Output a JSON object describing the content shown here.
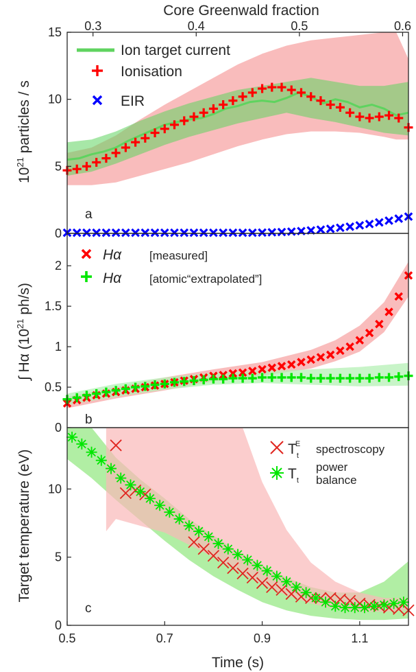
{
  "figure": {
    "top_axis_title": "Core Greenwald fraction",
    "top_ticks": [
      "0.3",
      "0.4",
      "0.5",
      "0.6"
    ],
    "x_axis_title": "Time (s)",
    "x_ticks": [
      "0.5",
      "0.7",
      "0.9",
      "1.1"
    ]
  },
  "chart_data": [
    {
      "type": "line",
      "panel": "a",
      "ylabel": "10²¹ particles / s",
      "ylabel_base": "10",
      "ylabel_exp": "21",
      "ylabel_rest": " particles / s",
      "xlim": [
        0.5,
        1.2
      ],
      "ylim": [
        0,
        15
      ],
      "yticks": [
        "0",
        "5",
        "10",
        "15"
      ],
      "legend": {
        "ion": "Ion target current",
        "ionisation": "Ionisation",
        "eir": "EIR"
      },
      "colors": {
        "ion": "#5fd35f",
        "ionisation": "#ff0000",
        "eir": "#0000ff",
        "band": "#f9b8b8"
      },
      "series": [
        {
          "name": "Ion target current",
          "x": [
            0.5,
            0.525,
            0.55,
            0.575,
            0.6,
            0.625,
            0.65,
            0.675,
            0.7,
            0.725,
            0.75,
            0.775,
            0.8,
            0.825,
            0.85,
            0.875,
            0.9,
            0.925,
            0.95,
            0.975,
            1.0,
            1.025,
            1.05,
            1.075,
            1.1,
            1.125,
            1.15,
            1.175,
            1.2
          ],
          "values": [
            5.5,
            5.6,
            5.9,
            6.1,
            6.4,
            6.9,
            7.3,
            7.7,
            8.1,
            8.3,
            8.5,
            8.6,
            8.9,
            9.3,
            9.5,
            9.8,
            9.9,
            9.8,
            10.1,
            10.5,
            10.2,
            9.7,
            10.0,
            9.8,
            9.4,
            9.6,
            9.3,
            8.8,
            9.0
          ]
        },
        {
          "name": "Ionisation",
          "x": [
            0.5,
            0.52,
            0.54,
            0.56,
            0.58,
            0.6,
            0.62,
            0.64,
            0.66,
            0.68,
            0.7,
            0.72,
            0.74,
            0.76,
            0.78,
            0.8,
            0.82,
            0.84,
            0.86,
            0.88,
            0.9,
            0.92,
            0.94,
            0.96,
            0.98,
            1.0,
            1.02,
            1.04,
            1.06,
            1.08,
            1.1,
            1.12,
            1.14,
            1.16,
            1.18,
            1.2
          ],
          "values": [
            4.7,
            4.8,
            5.0,
            5.3,
            5.6,
            6.0,
            6.4,
            6.8,
            7.1,
            7.5,
            7.8,
            8.1,
            8.4,
            8.7,
            9.0,
            9.3,
            9.6,
            9.9,
            10.2,
            10.5,
            10.8,
            10.9,
            10.9,
            10.7,
            10.5,
            10.2,
            9.9,
            9.6,
            9.4,
            9.0,
            8.7,
            8.6,
            8.7,
            8.8,
            8.6,
            7.9
          ]
        },
        {
          "name": "EIR",
          "x": [
            0.5,
            0.52,
            0.54,
            0.56,
            0.58,
            0.6,
            0.62,
            0.64,
            0.66,
            0.68,
            0.7,
            0.72,
            0.74,
            0.76,
            0.78,
            0.8,
            0.82,
            0.84,
            0.86,
            0.88,
            0.9,
            0.92,
            0.94,
            0.96,
            0.98,
            1.0,
            1.02,
            1.04,
            1.06,
            1.08,
            1.1,
            1.12,
            1.14,
            1.16,
            1.18,
            1.2
          ],
          "values": [
            0.05,
            0.05,
            0.05,
            0.05,
            0.05,
            0.05,
            0.05,
            0.05,
            0.05,
            0.05,
            0.05,
            0.05,
            0.05,
            0.05,
            0.05,
            0.05,
            0.05,
            0.05,
            0.05,
            0.05,
            0.06,
            0.08,
            0.1,
            0.13,
            0.17,
            0.22,
            0.28,
            0.34,
            0.42,
            0.5,
            0.6,
            0.7,
            0.82,
            0.95,
            1.1,
            1.25
          ]
        }
      ],
      "bands": [
        {
          "x": [
            0.5,
            0.55,
            0.6,
            0.65,
            0.7,
            0.75,
            0.8,
            0.85,
            0.9,
            0.95,
            1.0,
            1.05,
            1.1,
            1.15,
            1.175,
            1.2
          ],
          "lower": [
            3.6,
            3.6,
            3.8,
            4.3,
            4.8,
            5.3,
            5.9,
            6.5,
            7.0,
            7.4,
            7.6,
            7.6,
            7.5,
            7.2,
            7.0,
            7.0
          ],
          "upper": [
            6.0,
            6.4,
            7.3,
            8.5,
            9.6,
            10.6,
            11.6,
            12.6,
            13.4,
            14.0,
            14.4,
            14.6,
            14.8,
            15.0,
            15.0,
            13.0
          ]
        },
        {
          "x": [
            0.5,
            0.55,
            0.6,
            0.65,
            0.7,
            0.75,
            0.8,
            0.85,
            0.9,
            0.95,
            1.0,
            1.05,
            1.1,
            1.15,
            1.2
          ],
          "lower": [
            4.3,
            4.6,
            5.2,
            5.9,
            6.6,
            7.2,
            7.7,
            8.2,
            8.6,
            9.0,
            8.6,
            8.3,
            7.9,
            7.5,
            7.3
          ],
          "upper": [
            6.8,
            7.0,
            7.6,
            8.4,
            9.1,
            9.7,
            10.2,
            10.7,
            11.0,
            11.3,
            11.6,
            11.3,
            11.0,
            11.0,
            11.3
          ]
        }
      ]
    },
    {
      "type": "scatter",
      "panel": "b",
      "ylabel": "∫ Hα (10²¹ ph/s)",
      "ylabel_pre": "∫ Hα (10",
      "ylabel_exp": "21",
      "ylabel_post": " ph/s)",
      "xlim": [
        0.5,
        1.2
      ],
      "ylim": [
        0,
        2.4
      ],
      "yticks": [
        "0",
        "0.5",
        "1",
        "1.5",
        "2"
      ],
      "legend": {
        "measured_symbol": "Hα",
        "measured": "[measured]",
        "extrap_symbol": "Hα",
        "extrap": "[atomic“extrapolated”]"
      },
      "colors": {
        "measured": "#ff0000",
        "extrapolated": "#00e600",
        "band_measured": "#f9b8b8",
        "band_extrapolated": "#b5f0b5"
      },
      "series": [
        {
          "name": "Hα [measured]",
          "x": [
            0.5,
            0.52,
            0.54,
            0.56,
            0.58,
            0.6,
            0.62,
            0.64,
            0.66,
            0.68,
            0.7,
            0.72,
            0.74,
            0.76,
            0.78,
            0.8,
            0.82,
            0.84,
            0.86,
            0.88,
            0.9,
            0.92,
            0.94,
            0.96,
            0.98,
            1.0,
            1.02,
            1.04,
            1.06,
            1.08,
            1.1,
            1.12,
            1.14,
            1.16,
            1.18,
            1.2
          ],
          "values": [
            0.3,
            0.34,
            0.37,
            0.4,
            0.42,
            0.44,
            0.46,
            0.48,
            0.5,
            0.52,
            0.54,
            0.56,
            0.58,
            0.6,
            0.62,
            0.64,
            0.65,
            0.67,
            0.68,
            0.7,
            0.72,
            0.74,
            0.76,
            0.78,
            0.81,
            0.84,
            0.87,
            0.9,
            0.95,
            1.0,
            1.08,
            1.17,
            1.28,
            1.43,
            1.62,
            1.88
          ]
        },
        {
          "name": "Hα [atomic“extrapolated”]",
          "x": [
            0.5,
            0.52,
            0.54,
            0.56,
            0.58,
            0.6,
            0.62,
            0.64,
            0.66,
            0.68,
            0.7,
            0.72,
            0.74,
            0.76,
            0.78,
            0.8,
            0.82,
            0.84,
            0.86,
            0.88,
            0.9,
            0.92,
            0.94,
            0.96,
            0.98,
            1.0,
            1.02,
            1.04,
            1.06,
            1.08,
            1.1,
            1.12,
            1.14,
            1.16,
            1.18,
            1.2
          ],
          "values": [
            0.35,
            0.37,
            0.4,
            0.42,
            0.44,
            0.46,
            0.48,
            0.5,
            0.51,
            0.53,
            0.54,
            0.56,
            0.57,
            0.58,
            0.59,
            0.6,
            0.6,
            0.61,
            0.61,
            0.61,
            0.62,
            0.62,
            0.62,
            0.62,
            0.62,
            0.61,
            0.61,
            0.61,
            0.61,
            0.61,
            0.61,
            0.61,
            0.62,
            0.62,
            0.63,
            0.64
          ]
        }
      ],
      "bands": [
        {
          "x": [
            0.5,
            0.6,
            0.7,
            0.8,
            0.9,
            1.0,
            1.05,
            1.1,
            1.15,
            1.2
          ],
          "lower": [
            0.24,
            0.36,
            0.46,
            0.57,
            0.64,
            0.73,
            0.82,
            0.94,
            1.18,
            1.62
          ],
          "upper": [
            0.38,
            0.5,
            0.62,
            0.72,
            0.81,
            0.96,
            1.08,
            1.26,
            1.55,
            2.05
          ]
        },
        {
          "x": [
            0.5,
            0.6,
            0.7,
            0.8,
            0.9,
            1.0,
            1.1,
            1.2
          ],
          "lower": [
            0.28,
            0.38,
            0.47,
            0.53,
            0.55,
            0.53,
            0.51,
            0.52
          ],
          "upper": [
            0.42,
            0.54,
            0.62,
            0.68,
            0.7,
            0.72,
            0.75,
            0.8
          ]
        }
      ]
    },
    {
      "type": "line",
      "panel": "c",
      "ylabel": "Target temperature (eV)",
      "xlim": [
        0.5,
        1.2
      ],
      "ylim": [
        0,
        14.5
      ],
      "yticks": [
        "0",
        "5",
        "10"
      ],
      "legend": {
        "spec_main": "T",
        "spec_sub": "t",
        "spec_sup": "E",
        "spec_text": "spectroscopy",
        "pb_main": "T",
        "pb_sub": "t",
        "pb_line1": "power",
        "pb_line2": "balance"
      },
      "colors": {
        "spectroscopy": "#e0251f",
        "power_balance": "#00e600",
        "band_spectroscopy": "#f9b8b8",
        "band_power": "#a8ec9a",
        "overlap": "#b5a861"
      },
      "series": [
        {
          "name": "T_t^E spectroscopy",
          "x": [
            0.6,
            0.62,
            0.64,
            0.66,
            0.76,
            0.78,
            0.8,
            0.82,
            0.84,
            0.86,
            0.88,
            0.9,
            0.92,
            0.94,
            0.96,
            0.98,
            1.0,
            1.02,
            1.04,
            1.06,
            1.08,
            1.1,
            1.12,
            1.14,
            1.16,
            1.18,
            1.2
          ],
          "values": [
            13.2,
            9.7,
            9.9,
            9.6,
            6.1,
            5.6,
            5.1,
            4.6,
            4.2,
            3.8,
            3.5,
            3.1,
            2.8,
            2.6,
            2.3,
            2.1,
            2.0,
            2.0,
            2.0,
            1.9,
            1.8,
            1.6,
            1.5,
            1.4,
            1.3,
            1.2,
            1.1
          ]
        },
        {
          "name": "T_t power balance",
          "x": [
            0.51,
            0.53,
            0.55,
            0.57,
            0.59,
            0.61,
            0.63,
            0.65,
            0.67,
            0.69,
            0.71,
            0.73,
            0.75,
            0.77,
            0.79,
            0.81,
            0.83,
            0.85,
            0.87,
            0.89,
            0.91,
            0.93,
            0.95,
            0.97,
            0.99,
            1.01,
            1.03,
            1.05,
            1.07,
            1.09,
            1.11,
            1.13,
            1.15,
            1.17,
            1.19
          ],
          "values": [
            13.8,
            13.3,
            12.7,
            12.1,
            11.5,
            10.8,
            10.3,
            9.8,
            9.3,
            8.8,
            8.3,
            7.8,
            7.3,
            6.9,
            6.5,
            6.0,
            5.6,
            5.2,
            4.8,
            4.4,
            4.0,
            3.6,
            3.2,
            2.8,
            2.4,
            2.0,
            1.7,
            1.4,
            1.3,
            1.3,
            1.3,
            1.4,
            1.5,
            1.6,
            1.7
          ]
        }
      ],
      "bands": [
        {
          "x": [
            0.58,
            0.58,
            0.6,
            0.7,
            0.8,
            0.84,
            0.86,
            0.9,
            0.95,
            1.0,
            1.05,
            1.1,
            1.15,
            1.2
          ],
          "lower": [
            6.9,
            6.9,
            7.8,
            6.8,
            5.0,
            4.2,
            3.8,
            3.0,
            2.2,
            1.6,
            1.2,
            1.0,
            1.0,
            1.1
          ],
          "upper": [
            6.9,
            14.5,
            14.5,
            14.5,
            14.5,
            14.5,
            14.5,
            10.5,
            7.0,
            4.6,
            3.2,
            2.4,
            2.0,
            2.0
          ]
        },
        {
          "x": [
            0.5,
            0.55,
            0.6,
            0.65,
            0.7,
            0.75,
            0.8,
            0.85,
            0.9,
            0.95,
            1.0,
            1.05,
            1.1,
            1.15,
            1.2
          ],
          "lower": [
            12.2,
            10.8,
            9.2,
            7.7,
            6.2,
            4.8,
            3.6,
            2.6,
            1.7,
            1.1,
            0.7,
            0.5,
            0.4,
            0.4,
            0.5
          ],
          "upper": [
            14.5,
            14.5,
            12.3,
            10.7,
            9.3,
            7.8,
            6.6,
            5.4,
            4.4,
            3.5,
            2.8,
            2.4,
            2.4,
            3.2,
            4.7
          ]
        }
      ]
    }
  ]
}
